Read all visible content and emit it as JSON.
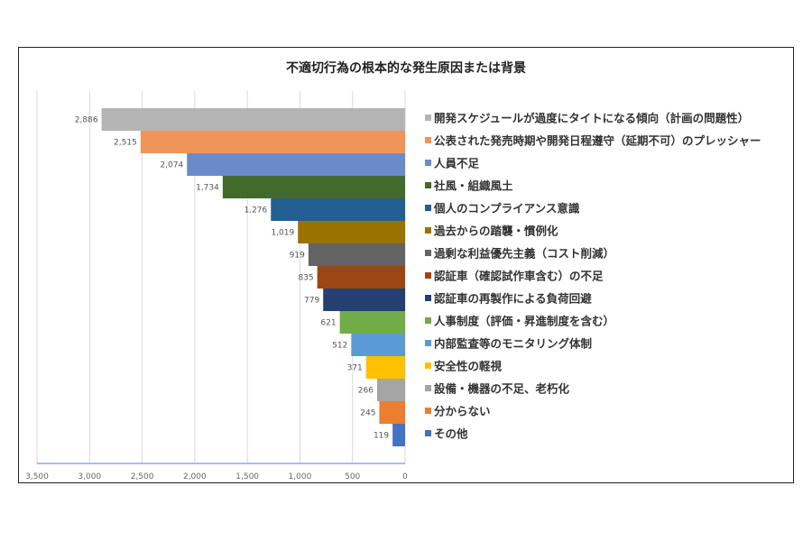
{
  "chart_data": {
    "type": "bar",
    "orientation": "horizontal",
    "x_reversed": true,
    "title": "不適切行為の根本的な発生原因または背景",
    "xlabel": "",
    "ylabel": "",
    "xlim": [
      0,
      3500
    ],
    "x_ticks": [
      "3,500",
      "3,000",
      "2,500",
      "2,000",
      "1,500",
      "1,000",
      "500",
      "0"
    ],
    "x_tick_values": [
      3500,
      3000,
      2500,
      2000,
      1500,
      1000,
      500,
      0
    ],
    "grid": "vertical",
    "legend": "right",
    "categories": [
      "開発スケジュールが過度にタイトになる傾向（計画の問題性）",
      "公表された発売時期や開発日程遵守（延期不可）のプレッシャー",
      "人員不足",
      "社風・組織風土",
      "個人のコンプライアンス意識",
      "過去からの踏襲・慣例化",
      "過剰な利益優先主義（コスト削減）",
      "認証車（確認試作車含む）の不足",
      "認証車の再製作による負荷回避",
      "人事制度（評価・昇進制度を含む）",
      "内部監査等のモニタリング体制",
      "安全性の軽視",
      "設備・機器の不足、老朽化",
      "分からない",
      "その他"
    ],
    "values": [
      2886,
      2515,
      2074,
      1734,
      1276,
      1019,
      919,
      835,
      779,
      621,
      512,
      371,
      266,
      245,
      119
    ],
    "data_labels": [
      "2,886",
      "2,515",
      "2,074",
      "1,734",
      "1,276",
      "1,019",
      "919",
      "835",
      "779",
      "621",
      "512",
      "371",
      "266",
      "245",
      "119"
    ],
    "colors": [
      "#b4b4b4",
      "#f0955a",
      "#6a8bcb",
      "#416a2c",
      "#235f92",
      "#9a7200",
      "#636363",
      "#9c4713",
      "#253f73",
      "#70ad47",
      "#5b9bd5",
      "#ffc000",
      "#a5a5a5",
      "#ed7d31",
      "#4472c4"
    ]
  }
}
